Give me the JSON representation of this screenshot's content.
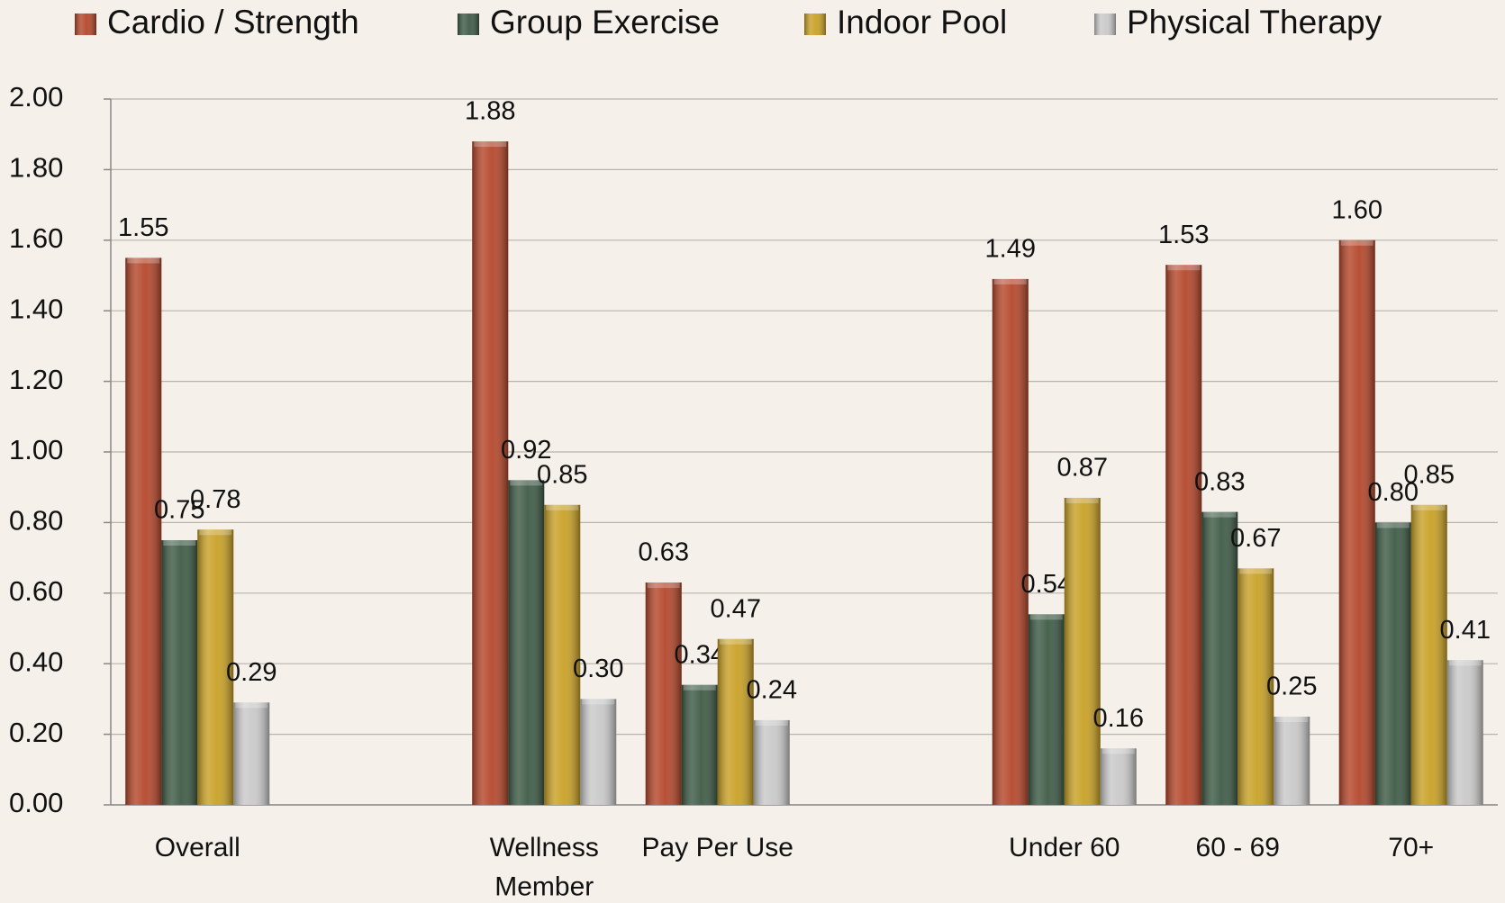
{
  "chart_data": {
    "type": "bar",
    "categories": [
      "Overall",
      null,
      "Wellness Member",
      "Pay Per Use",
      null,
      "Under 60",
      "60 - 69",
      "70+"
    ],
    "series": [
      {
        "name": "Cardio / Strength",
        "color": "#b4472b",
        "values": [
          1.55,
          null,
          1.88,
          0.63,
          null,
          1.49,
          1.53,
          1.6
        ],
        "value_labels": [
          "1.55",
          null,
          "1.88",
          "0.63",
          null,
          "1.49",
          "1.53",
          "1.60"
        ]
      },
      {
        "name": "Group Exercise",
        "color": "#3e5b46",
        "values": [
          0.75,
          null,
          0.92,
          0.34,
          null,
          0.54,
          0.83,
          0.8
        ],
        "value_labels": [
          "0.75",
          null,
          "0.92",
          "0.34",
          null,
          "0.54",
          "0.83",
          "0.80"
        ]
      },
      {
        "name": "Indoor Pool",
        "color": "#c9a126",
        "values": [
          0.78,
          null,
          0.85,
          0.47,
          null,
          0.87,
          0.67,
          0.85
        ],
        "value_labels": [
          "0.78",
          null,
          "0.85",
          "0.47",
          null,
          "0.87",
          "0.67",
          "0.85"
        ]
      },
      {
        "name": "Physical Therapy",
        "color": "#c9c9c9",
        "values": [
          0.29,
          null,
          0.3,
          0.24,
          null,
          0.16,
          0.25,
          0.41
        ],
        "value_labels": [
          "0.29",
          null,
          "0.30",
          "0.24",
          null,
          "0.16",
          "0.25",
          "0.41"
        ]
      }
    ],
    "ylim": [
      0,
      2
    ],
    "yticks": [
      {
        "value": 0,
        "label": "0.00"
      },
      {
        "value": 0.2,
        "label": "0.20"
      },
      {
        "value": 0.4,
        "label": "0.40"
      },
      {
        "value": 0.6,
        "label": "0.60"
      },
      {
        "value": 0.8,
        "label": "0.80"
      },
      {
        "value": 1,
        "label": "1.00"
      },
      {
        "value": 1.2,
        "label": "1.20"
      },
      {
        "value": 1.4,
        "label": "1.40"
      },
      {
        "value": 1.6,
        "label": "1.60"
      },
      {
        "value": 1.8,
        "label": "1.80"
      },
      {
        "value": 2,
        "label": "2.00"
      }
    ],
    "grid": true,
    "legend": "top"
  }
}
